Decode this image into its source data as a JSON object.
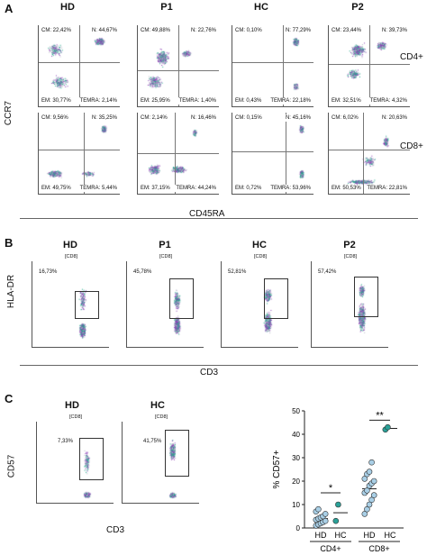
{
  "panelA": {
    "letter": "A",
    "columns": [
      "HD",
      "P1",
      "HC",
      "P2"
    ],
    "y_label": "CCR7",
    "x_label": "CD45RA",
    "row_labels": [
      "CD4+",
      "CD8+"
    ],
    "rows": [
      [
        {
          "cm": "CM: 22,42%",
          "n": "N: 44,67%",
          "em": "EM: 30,77%",
          "temra": "TEMRA: 2,14%"
        },
        {
          "cm": "CM: 49,88%",
          "n": "N: 22,76%",
          "em": "EM: 25,95%",
          "temra": "TEMRA: 1,40%"
        },
        {
          "cm": "CM: 0,10%",
          "n": "N: 77,29%",
          "em": "EM: 0,43%",
          "temra": "TEMRA: 22,18%"
        },
        {
          "cm": "CM: 23,44%",
          "n": "N: 39,73%",
          "em": "EM: 32,51%",
          "temra": "TEMRA: 4,32%"
        }
      ],
      [
        {
          "cm": "CM: 9,56%",
          "n": "N: 35,25%",
          "em": "EM: 49,75%",
          "temra": "TEMRA: 5,44%"
        },
        {
          "cm": "CM: 2,14%",
          "n": "N: 16,46%",
          "em": "EM: 37,15%",
          "temra": "TEMRA: 44,24%"
        },
        {
          "cm": "CM: 0,15%",
          "n": "N: 45,16%",
          "em": "EM: 0,72%",
          "temra": "TEMRA: 53,96%"
        },
        {
          "cm": "CM: 6,02%",
          "n": "N: 20,63%",
          "em": "EM: 50,53%",
          "temra": "TEMRA: 22,81%"
        }
      ]
    ]
  },
  "panelB": {
    "letter": "B",
    "columns": [
      "HD",
      "P1",
      "HC",
      "P2"
    ],
    "y_label": "HLA-DR",
    "x_label": "CD3",
    "gate_name": "[CD8]",
    "values": [
      "16,73%",
      "45,78%",
      "52,81%",
      "57,42%"
    ]
  },
  "panelC": {
    "letter": "C",
    "columns": [
      "HD",
      "HC"
    ],
    "y_label": "CD57",
    "x_label": "CD3",
    "gate_name": "[CD8]",
    "values": [
      "7,33%",
      "41,75%"
    ],
    "chart": {
      "ylabel": "% CD57+",
      "yticks": [
        "0",
        "10",
        "20",
        "30",
        "40",
        "50"
      ],
      "group_labels": [
        "HD",
        "HC",
        "HD",
        "HC"
      ],
      "subset_labels": [
        "CD4+",
        "CD8+"
      ],
      "significance": [
        "*",
        "**"
      ]
    }
  },
  "chart_data": {
    "type": "scatter",
    "ylabel": "% CD57+",
    "ylim": [
      0,
      50
    ],
    "categories": [
      "CD4+ HD",
      "CD4+ HC",
      "CD8+ HD",
      "CD8+ HC"
    ],
    "series": [
      {
        "name": "HD",
        "color": "#a9cfe6",
        "groups": [
          {
            "category": "CD4+ HD",
            "values": [
              1,
              1.5,
              2,
              2.5,
              3,
              3.5,
              4,
              4.5,
              5,
              6,
              7,
              8
            ]
          },
          {
            "category": "CD8+ HD",
            "values": [
              6,
              8,
              10,
              12,
              14,
              15,
              16,
              18,
              19,
              20,
              21,
              23,
              24,
              28
            ]
          }
        ]
      },
      {
        "name": "HC",
        "color": "#2aa198",
        "groups": [
          {
            "category": "CD4+ HC",
            "values": [
              3,
              10
            ]
          },
          {
            "category": "CD8+ HC",
            "values": [
              42,
              43
            ]
          }
        ]
      }
    ]
  },
  "colors": {
    "density_low": "#b9b9c8",
    "density_mid": "#8a3fb5",
    "density_high": "#1fa98a",
    "hd": "#a9cfe6",
    "hc": "#2aa198"
  }
}
